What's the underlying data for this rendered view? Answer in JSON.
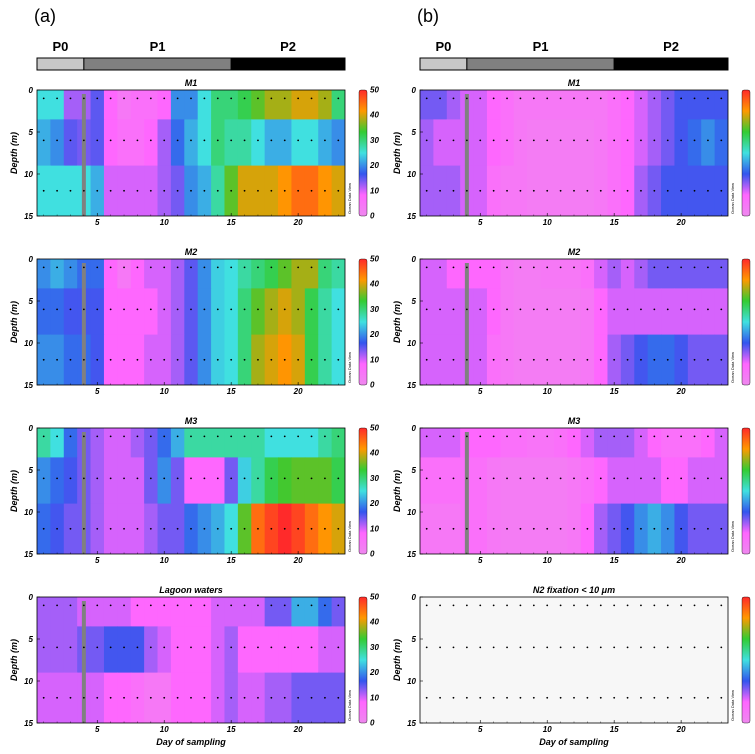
{
  "figure": {
    "panel_letters": [
      "(a)",
      "(b)"
    ],
    "phases": [
      {
        "label": "P0",
        "color": "#c8c8c8",
        "start_day": 0.5,
        "end_day": 4
      },
      {
        "label": "P1",
        "color": "#808080",
        "start_day": 4,
        "end_day": 15
      },
      {
        "label": "P2",
        "color": "#000000",
        "start_day": 15,
        "end_day": 23.5
      }
    ],
    "vertical_marker_day": 4,
    "colorbar_watermark": "Ocean Data View",
    "colorbar_stops": [
      "#ee88ee",
      "#ff66ff",
      "#3355ee",
      "#40e0e0",
      "#33cc33",
      "#ff9900",
      "#ff2a2a"
    ]
  },
  "chart_data": [
    {
      "type": "heatmap",
      "title": "M1",
      "column": 0,
      "row": 0,
      "xlabel": "",
      "ylabel": "Depth (m)",
      "xlim": [
        0.5,
        23.5
      ],
      "ylim": [
        15,
        0
      ],
      "y_inverted": true,
      "xticks": [
        5,
        10,
        15,
        20
      ],
      "show_xtick_labels": true,
      "yticks": [
        0,
        5,
        10,
        15
      ],
      "sample_depths": [
        1,
        6,
        12
      ],
      "sample_days": [
        1,
        2,
        3,
        4,
        5,
        6,
        7,
        8,
        9,
        10,
        11,
        12,
        13,
        14,
        15,
        16,
        17,
        18,
        19,
        20,
        21,
        22,
        23
      ],
      "value_range": [
        0,
        50
      ],
      "colorbar_ticks": [
        0,
        10,
        20,
        30,
        40,
        50
      ],
      "values": [
        [
          25,
          25,
          12,
          12,
          15,
          8,
          4,
          6,
          6,
          8,
          20,
          20,
          25,
          30,
          30,
          32,
          35,
          38,
          38,
          40,
          40,
          38,
          30
        ],
        [
          22,
          20,
          15,
          14,
          15,
          8,
          6,
          6,
          8,
          12,
          18,
          22,
          25,
          30,
          28,
          28,
          25,
          22,
          22,
          25,
          25,
          22,
          20
        ],
        [
          25,
          25,
          25,
          25,
          22,
          10,
          10,
          10,
          10,
          12,
          14,
          20,
          22,
          28,
          35,
          40,
          40,
          40,
          42,
          45,
          45,
          42,
          40
        ]
      ]
    },
    {
      "type": "heatmap",
      "title": "M2",
      "column": 0,
      "row": 1,
      "xlabel": "",
      "ylabel": "Depth (m)",
      "xlim": [
        0.5,
        23.5
      ],
      "ylim": [
        15,
        0
      ],
      "y_inverted": true,
      "xticks": [
        5,
        10,
        15,
        20
      ],
      "show_xtick_labels": true,
      "yticks": [
        0,
        5,
        10,
        15
      ],
      "sample_depths": [
        1,
        6,
        12
      ],
      "sample_days": [
        1,
        2,
        3,
        4,
        5,
        6,
        7,
        8,
        9,
        10,
        11,
        12,
        13,
        14,
        15,
        16,
        17,
        18,
        19,
        20,
        21,
        22,
        23
      ],
      "value_range": [
        0,
        50
      ],
      "colorbar_ticks": [
        0,
        10,
        20,
        30,
        40,
        50
      ],
      "values": [
        [
          20,
          22,
          20,
          18,
          18,
          8,
          4,
          8,
          10,
          10,
          12,
          15,
          20,
          24,
          25,
          28,
          30,
          32,
          35,
          38,
          38,
          30,
          28
        ],
        [
          18,
          18,
          16,
          16,
          16,
          8,
          8,
          8,
          8,
          10,
          12,
          15,
          20,
          24,
          25,
          30,
          35,
          38,
          40,
          38,
          32,
          28,
          25
        ],
        [
          20,
          20,
          18,
          18,
          16,
          8,
          8,
          8,
          10,
          10,
          12,
          15,
          20,
          24,
          25,
          30,
          38,
          40,
          42,
          40,
          32,
          28,
          25
        ]
      ]
    },
    {
      "type": "heatmap",
      "title": "M3",
      "column": 0,
      "row": 2,
      "xlabel": "",
      "ylabel": "Depth (m)",
      "xlim": [
        0.5,
        23.5
      ],
      "ylim": [
        15,
        0
      ],
      "y_inverted": true,
      "xticks": [
        5,
        10,
        15,
        20
      ],
      "show_xtick_labels": true,
      "yticks": [
        0,
        5,
        10,
        15
      ],
      "sample_depths": [
        1,
        6,
        12
      ],
      "sample_days": [
        1,
        2,
        3,
        4,
        5,
        6,
        7,
        8,
        9,
        10,
        11,
        12,
        13,
        14,
        15,
        16,
        17,
        18,
        19,
        20,
        21,
        22,
        23
      ],
      "value_range": [
        0,
        50
      ],
      "colorbar_ticks": [
        0,
        10,
        20,
        30,
        40,
        50
      ],
      "values": [
        [
          28,
          25,
          18,
          14,
          12,
          10,
          10,
          12,
          14,
          18,
          22,
          28,
          28,
          28,
          28,
          28,
          28,
          25,
          25,
          25,
          25,
          28,
          30
        ],
        [
          20,
          18,
          16,
          14,
          12,
          10,
          10,
          10,
          14,
          20,
          14,
          8,
          8,
          8,
          14,
          24,
          28,
          32,
          34,
          35,
          35,
          35,
          32
        ],
        [
          18,
          16,
          14,
          14,
          12,
          10,
          10,
          10,
          12,
          14,
          14,
          18,
          20,
          22,
          25,
          35,
          45,
          48,
          50,
          48,
          45,
          42,
          40
        ]
      ]
    },
    {
      "type": "heatmap",
      "title": "Lagoon waters",
      "column": 0,
      "row": 3,
      "xlabel": "Day of sampling",
      "ylabel": "Depth (m)",
      "xlim": [
        0.5,
        23.5
      ],
      "ylim": [
        15,
        0
      ],
      "y_inverted": true,
      "xticks": [
        5,
        10,
        15,
        20
      ],
      "show_xtick_labels": true,
      "yticks": [
        0,
        5,
        10,
        15
      ],
      "sample_depths": [
        1,
        6,
        12
      ],
      "sample_days": [
        1,
        2,
        3,
        4,
        5,
        6,
        7,
        8,
        9,
        10,
        11,
        12,
        13,
        14,
        15,
        16,
        17,
        18,
        19,
        20,
        21,
        22,
        23
      ],
      "value_range": [
        0,
        50
      ],
      "colorbar_ticks": [
        0,
        10,
        20,
        30,
        40,
        50
      ],
      "values": [
        [
          12,
          12,
          12,
          10,
          10,
          10,
          10,
          8,
          8,
          8,
          8,
          8,
          8,
          10,
          10,
          10,
          10,
          14,
          14,
          22,
          22,
          18,
          14
        ],
        [
          12,
          12,
          12,
          14,
          14,
          16,
          16,
          16,
          12,
          10,
          8,
          8,
          8,
          10,
          12,
          8,
          8,
          8,
          8,
          8,
          8,
          10,
          10
        ],
        [
          10,
          10,
          10,
          10,
          10,
          8,
          8,
          6,
          4,
          4,
          8,
          8,
          8,
          10,
          12,
          10,
          10,
          12,
          12,
          14,
          14,
          14,
          14
        ]
      ]
    },
    {
      "type": "heatmap",
      "title": "M1",
      "column": 1,
      "row": 0,
      "xlabel": "",
      "ylabel": "Depth (m)",
      "xlim": [
        0.5,
        23.5
      ],
      "ylim": [
        15,
        0
      ],
      "y_inverted": true,
      "xticks": [
        5,
        10,
        15,
        20
      ],
      "show_xtick_labels": true,
      "yticks": [
        0,
        5,
        10,
        15
      ],
      "sample_depths": [
        1,
        6,
        12
      ],
      "sample_days": [
        1,
        2,
        3,
        4,
        5,
        6,
        7,
        8,
        9,
        10,
        11,
        12,
        13,
        14,
        15,
        16,
        17,
        18,
        19,
        20,
        21,
        22,
        23
      ],
      "value_range": [
        0,
        50
      ],
      "colorbar_ticks": [
        0,
        10,
        20,
        30,
        40,
        50
      ],
      "values": [
        [
          14,
          14,
          12,
          10,
          10,
          8,
          6,
          4,
          4,
          4,
          4,
          4,
          4,
          4,
          6,
          8,
          10,
          12,
          14,
          16,
          16,
          16,
          16
        ],
        [
          12,
          10,
          10,
          10,
          10,
          8,
          6,
          4,
          3,
          3,
          3,
          3,
          3,
          4,
          6,
          8,
          10,
          12,
          14,
          16,
          18,
          20,
          18
        ],
        [
          12,
          12,
          12,
          10,
          10,
          6,
          4,
          4,
          3,
          3,
          3,
          3,
          3,
          4,
          6,
          8,
          12,
          14,
          16,
          16,
          16,
          16,
          16
        ]
      ]
    },
    {
      "type": "heatmap",
      "title": "M2",
      "column": 1,
      "row": 1,
      "xlabel": "",
      "ylabel": "Depth (m)",
      "xlim": [
        0.5,
        23.5
      ],
      "ylim": [
        15,
        0
      ],
      "y_inverted": true,
      "xticks": [
        5,
        10,
        15,
        20
      ],
      "show_xtick_labels": true,
      "yticks": [
        0,
        5,
        10,
        15
      ],
      "sample_depths": [
        1,
        6,
        12
      ],
      "sample_days": [
        1,
        2,
        3,
        4,
        5,
        6,
        7,
        8,
        9,
        10,
        11,
        12,
        13,
        14,
        15,
        16,
        17,
        18,
        19,
        20,
        21,
        22,
        23
      ],
      "value_range": [
        0,
        50
      ],
      "colorbar_ticks": [
        0,
        10,
        20,
        30,
        40,
        50
      ],
      "values": [
        [
          10,
          10,
          8,
          8,
          8,
          8,
          4,
          3,
          3,
          4,
          4,
          4,
          6,
          10,
          12,
          10,
          12,
          14,
          14,
          14,
          14,
          14,
          14
        ],
        [
          10,
          10,
          10,
          10,
          10,
          8,
          4,
          3,
          3,
          3,
          3,
          3,
          4,
          8,
          10,
          10,
          10,
          10,
          10,
          10,
          10,
          10,
          10
        ],
        [
          10,
          10,
          10,
          10,
          10,
          6,
          4,
          3,
          3,
          3,
          3,
          3,
          4,
          8,
          12,
          14,
          16,
          18,
          18,
          16,
          14,
          14,
          14
        ]
      ]
    },
    {
      "type": "heatmap",
      "title": "M3",
      "column": 1,
      "row": 2,
      "xlabel": "",
      "ylabel": "Depth (m)",
      "xlim": [
        0.5,
        23.5
      ],
      "ylim": [
        15,
        0
      ],
      "y_inverted": true,
      "xticks": [
        5,
        10,
        15,
        20
      ],
      "show_xtick_labels": true,
      "yticks": [
        0,
        5,
        10,
        15
      ],
      "sample_depths": [
        1,
        6,
        12
      ],
      "sample_days": [
        1,
        2,
        3,
        4,
        5,
        6,
        7,
        8,
        9,
        10,
        11,
        12,
        13,
        14,
        15,
        16,
        17,
        18,
        19,
        20,
        21,
        22,
        23
      ],
      "value_range": [
        0,
        50
      ],
      "colorbar_ticks": [
        0,
        10,
        20,
        30,
        40,
        50
      ],
      "values": [
        [
          10,
          10,
          10,
          8,
          8,
          8,
          6,
          6,
          5,
          5,
          6,
          8,
          10,
          12,
          12,
          12,
          10,
          8,
          6,
          6,
          6,
          8,
          10
        ],
        [
          6,
          6,
          6,
          6,
          6,
          4,
          3,
          3,
          3,
          3,
          3,
          4,
          6,
          8,
          10,
          10,
          10,
          10,
          8,
          8,
          10,
          10,
          10
        ],
        [
          4,
          4,
          4,
          6,
          6,
          4,
          3,
          3,
          3,
          3,
          3,
          4,
          8,
          12,
          14,
          16,
          20,
          22,
          20,
          16,
          14,
          14,
          14
        ]
      ]
    },
    {
      "type": "heatmap",
      "title": "N2 fixation < 10 μm",
      "column": 1,
      "row": 3,
      "xlabel": "Day of sampling",
      "ylabel": "Depth (m)",
      "xlim": [
        0.5,
        23.5
      ],
      "ylim": [
        15,
        0
      ],
      "y_inverted": true,
      "xticks": [
        5,
        10,
        15,
        20
      ],
      "show_xtick_labels": true,
      "yticks": [
        0,
        5,
        10,
        15
      ],
      "sample_depths": [
        1,
        6,
        12
      ],
      "sample_days": [
        1,
        2,
        3,
        4,
        5,
        6,
        7,
        8,
        9,
        10,
        11,
        12,
        13,
        14,
        15,
        16,
        17,
        18,
        19,
        20,
        21,
        22,
        23
      ],
      "value_range": [
        0,
        50
      ],
      "colorbar_ticks": [
        0,
        10,
        20,
        30,
        40,
        50
      ],
      "empty": true,
      "values": []
    }
  ]
}
